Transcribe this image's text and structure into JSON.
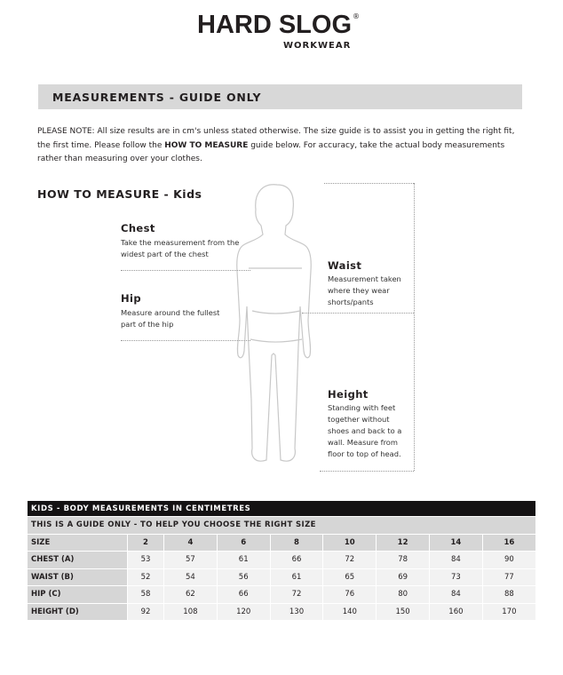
{
  "logo": {
    "main": "HARD SLOG",
    "registered": "®",
    "sub": "WORKWEAR"
  },
  "banner": {
    "title": "MEASUREMENTS - GUIDE ONLY"
  },
  "note": {
    "prefix": "PLEASE NOTE:  All size results are in cm's unless stated otherwise. The size guide is to assist you in getting the right fit, the first time. Please follow the ",
    "bold": "HOW TO MEASURE",
    "suffix": " guide below. For accuracy, take the actual body measurements rather than measuring over your clothes."
  },
  "how_to": {
    "title": "HOW TO MEASURE - Kids",
    "chest": {
      "label": "Chest",
      "desc": "Take the measurement from the widest part of the chest"
    },
    "hip": {
      "label": "Hip",
      "desc": "Measure around the fullest part of the hip"
    },
    "waist": {
      "label": "Waist",
      "desc": "Measurement taken where they wear shorts/pants"
    },
    "height": {
      "label": "Height",
      "desc": "Standing with feet together without shoes and back to a wall. Measure from floor to top of head."
    }
  },
  "table": {
    "title": "KIDS - BODY MEASUREMENTS IN CENTIMETRES",
    "subtitle": "THIS IS A GUIDE ONLY - TO HELP YOU CHOOSE THE RIGHT SIZE",
    "size_label": "SIZE",
    "sizes": [
      "2",
      "4",
      "6",
      "8",
      "10",
      "12",
      "14",
      "16"
    ],
    "rows": [
      {
        "label": "CHEST (A)",
        "values": [
          "53",
          "57",
          "61",
          "66",
          "72",
          "78",
          "84",
          "90"
        ]
      },
      {
        "label": "WAIST (B)",
        "values": [
          "52",
          "54",
          "56",
          "61",
          "65",
          "69",
          "73",
          "77"
        ]
      },
      {
        "label": "HIP (C)",
        "values": [
          "58",
          "62",
          "66",
          "72",
          "76",
          "80",
          "84",
          "88"
        ]
      },
      {
        "label": "HEIGHT (D)",
        "values": [
          "92",
          "108",
          "120",
          "130",
          "140",
          "150",
          "160",
          "170"
        ]
      }
    ]
  }
}
